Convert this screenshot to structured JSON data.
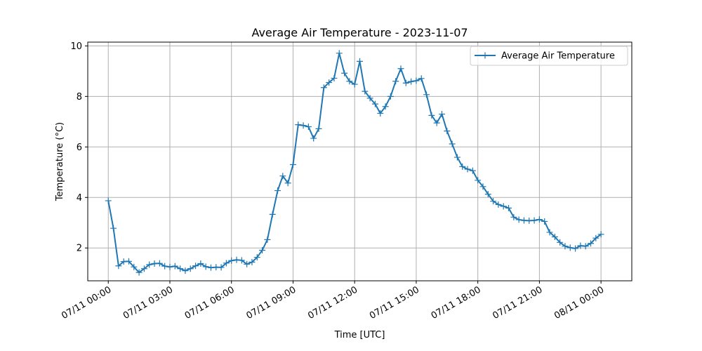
{
  "chart_data": {
    "type": "line",
    "title": "Average Air Temperature - 2023-11-07",
    "xlabel": "Time [UTC]",
    "ylabel": "Temperature (°C)",
    "xlim_hours": [
      -1,
      25.5
    ],
    "ylim": [
      0.7,
      10.15
    ],
    "grid": true,
    "legend_position": "top-right",
    "x_ticks": [
      {
        "hour": 0,
        "label": "07/11 00:00"
      },
      {
        "hour": 3,
        "label": "07/11 03:00"
      },
      {
        "hour": 6,
        "label": "07/11 06:00"
      },
      {
        "hour": 9,
        "label": "07/11 09:00"
      },
      {
        "hour": 12,
        "label": "07/11 12:00"
      },
      {
        "hour": 15,
        "label": "07/11 15:00"
      },
      {
        "hour": 18,
        "label": "07/11 18:00"
      },
      {
        "hour": 21,
        "label": "07/11 21:00"
      },
      {
        "hour": 24,
        "label": "08/11 00:00"
      }
    ],
    "y_ticks": [
      {
        "value": 2,
        "label": "2"
      },
      {
        "value": 4,
        "label": "4"
      },
      {
        "value": 6,
        "label": "6"
      },
      {
        "value": 8,
        "label": "8"
      },
      {
        "value": 10,
        "label": "10"
      }
    ],
    "series": [
      {
        "name": "Average Air Temperature",
        "color": "#1f77b4",
        "marker": "plus",
        "x_hours": [
          0,
          0.25,
          0.5,
          0.75,
          1,
          1.25,
          1.5,
          1.75,
          2,
          2.25,
          2.5,
          2.75,
          3,
          3.25,
          3.5,
          3.75,
          4,
          4.25,
          4.5,
          4.75,
          5,
          5.25,
          5.5,
          5.75,
          6,
          6.25,
          6.5,
          6.75,
          7,
          7.25,
          7.5,
          7.75,
          8,
          8.25,
          8.5,
          8.75,
          9,
          9.25,
          9.5,
          9.75,
          10,
          10.25,
          10.5,
          10.75,
          11,
          11.25,
          11.5,
          11.75,
          12,
          12.25,
          12.5,
          12.75,
          13,
          13.25,
          13.5,
          13.75,
          14,
          14.25,
          14.5,
          14.75,
          15,
          15.25,
          15.5,
          15.75,
          16,
          16.25,
          16.5,
          16.75,
          17,
          17.25,
          17.5,
          17.75,
          18,
          18.25,
          18.5,
          18.75,
          19,
          19.25,
          19.5,
          19.75,
          20,
          20.25,
          20.5,
          20.75,
          21,
          21.25,
          21.5,
          21.75,
          22,
          22.25,
          22.5,
          22.75,
          23,
          23.25,
          23.5,
          23.75,
          24
        ],
        "values": [
          3.87,
          2.78,
          1.29,
          1.46,
          1.47,
          1.25,
          1.03,
          1.18,
          1.34,
          1.38,
          1.39,
          1.28,
          1.25,
          1.28,
          1.18,
          1.1,
          1.18,
          1.29,
          1.38,
          1.26,
          1.22,
          1.24,
          1.23,
          1.4,
          1.5,
          1.53,
          1.51,
          1.36,
          1.44,
          1.63,
          1.91,
          2.33,
          3.33,
          4.27,
          4.85,
          4.57,
          5.3,
          6.88,
          6.85,
          6.8,
          6.34,
          6.72,
          8.35,
          8.55,
          8.72,
          9.71,
          8.92,
          8.6,
          8.48,
          9.39,
          8.2,
          7.93,
          7.7,
          7.33,
          7.6,
          8.0,
          8.6,
          9.1,
          8.53,
          8.59,
          8.62,
          8.71,
          8.07,
          7.25,
          6.95,
          7.3,
          6.63,
          6.12,
          5.59,
          5.22,
          5.12,
          5.06,
          4.68,
          4.43,
          4.13,
          3.85,
          3.72,
          3.65,
          3.58,
          3.22,
          3.12,
          3.09,
          3.08,
          3.09,
          3.13,
          3.05,
          2.62,
          2.44,
          2.22,
          2.07,
          2.01,
          1.98,
          2.09,
          2.07,
          2.18,
          2.39,
          2.54
        ]
      }
    ]
  }
}
